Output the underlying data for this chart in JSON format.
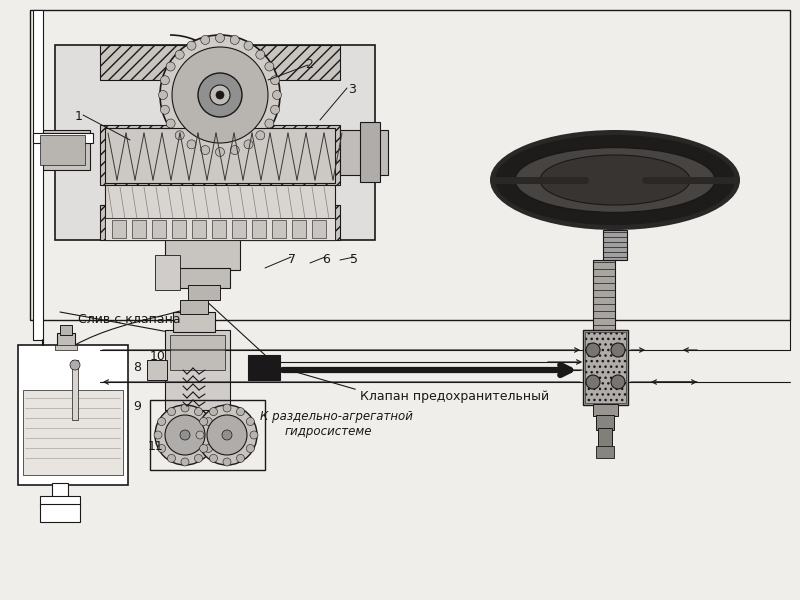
{
  "bg_color": "#f0eeea",
  "black": "#1a1818",
  "dark_gray": "#3a3838",
  "med_gray": "#888080",
  "light_gray": "#c8c4c0",
  "very_light_gray": "#e0dedd",
  "text_sliv": "Слив с клапана",
  "text_klapan": "Клапан предохранительный",
  "text_k_razd": "К раздельно-агрегатной",
  "text_gidro": "гидросистеме",
  "label_1": "1",
  "label_2": "2",
  "label_3": "3",
  "label_5": "5",
  "label_6": "6",
  "label_7": "7",
  "label_8": "8",
  "label_9": "9",
  "label_10": "10",
  "label_11": "11"
}
